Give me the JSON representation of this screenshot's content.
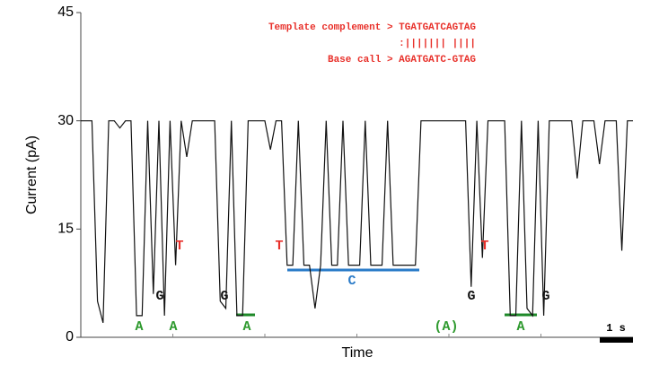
{
  "chart_data": {
    "type": "line",
    "x_label": "Time",
    "y_label": "Current (pA)",
    "ylim": [
      0,
      45
    ],
    "yticks": [
      0,
      15,
      30,
      45
    ],
    "color": "#111111",
    "values": [
      30,
      30,
      30,
      5,
      2,
      30,
      30,
      29,
      30,
      30,
      3,
      3,
      30,
      6,
      30,
      3,
      30,
      10,
      30,
      25,
      30,
      30,
      30,
      30,
      30,
      5,
      4,
      30,
      3,
      3,
      30,
      30,
      30,
      30,
      26,
      30,
      30,
      10,
      10,
      30,
      10,
      10,
      4,
      10,
      30,
      10,
      10,
      30,
      10,
      10,
      10,
      30,
      10,
      10,
      10,
      30,
      10,
      10,
      10,
      10,
      10,
      30,
      30,
      30,
      30,
      30,
      30,
      30,
      30,
      30,
      7,
      30,
      11,
      30,
      30,
      30,
      30,
      3,
      3,
      30,
      4,
      3,
      30,
      3,
      30,
      30,
      30,
      30,
      30,
      22,
      30,
      30,
      30,
      24,
      30,
      30,
      30,
      12,
      30,
      30
    ],
    "alignment": [
      "Template complement > TGATGATCAGTAG",
      ":||||||| ||||",
      "Base call > AGATGATC-GTAG"
    ],
    "bases": [
      "A",
      "A",
      "A",
      "(A)",
      "A",
      "G",
      "G",
      "G",
      "G",
      "T",
      "T",
      "T",
      "C"
    ],
    "scale_bar": "1 s"
  }
}
